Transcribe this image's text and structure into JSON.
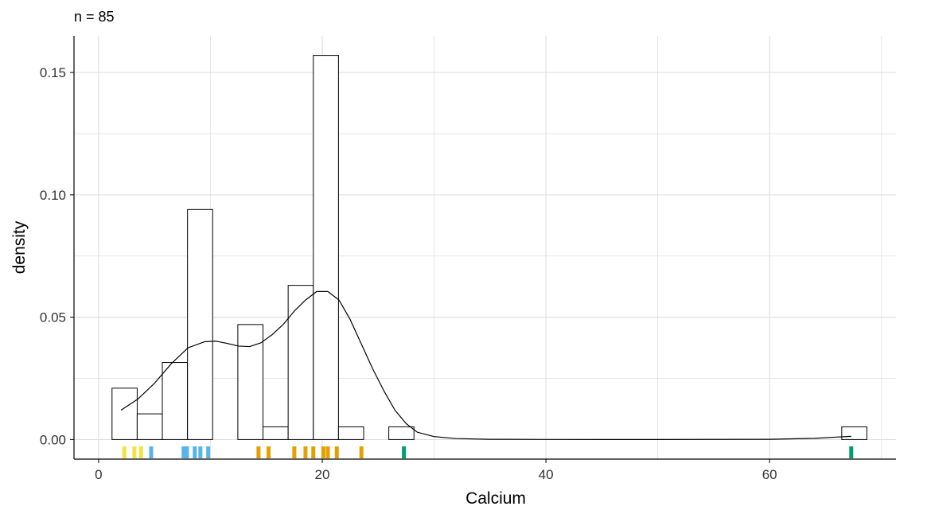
{
  "chart_data": {
    "type": "histogram",
    "subtitle": "n = 85",
    "xlabel": "Calcium",
    "ylabel": "density",
    "xlim": [
      -2.2,
      71.3
    ],
    "ylim": [
      -0.008,
      0.165
    ],
    "x_ticks": [
      0,
      20,
      40,
      60
    ],
    "y_ticks": [
      0.0,
      0.05,
      0.1,
      0.15
    ],
    "x_tick_labels": [
      "0",
      "20",
      "40",
      "60"
    ],
    "y_tick_labels": [
      "0.00",
      "0.05",
      "0.10",
      "0.15"
    ],
    "grid": true,
    "bins": [
      {
        "x0": 1.2,
        "x1": 3.45,
        "density": 0.021
      },
      {
        "x0": 3.45,
        "x1": 5.7,
        "density": 0.0105
      },
      {
        "x0": 5.7,
        "x1": 7.95,
        "density": 0.0315
      },
      {
        "x0": 7.95,
        "x1": 10.2,
        "density": 0.094
      },
      {
        "x0": 10.2,
        "x1": 12.45,
        "density": 0.0
      },
      {
        "x0": 12.45,
        "x1": 14.7,
        "density": 0.047
      },
      {
        "x0": 14.7,
        "x1": 16.95,
        "density": 0.0052
      },
      {
        "x0": 16.95,
        "x1": 19.2,
        "density": 0.063
      },
      {
        "x0": 19.2,
        "x1": 21.45,
        "density": 0.157
      },
      {
        "x0": 21.45,
        "x1": 23.7,
        "density": 0.0052
      },
      {
        "x0": 25.95,
        "x1": 28.2,
        "density": 0.0052
      },
      {
        "x0": 66.45,
        "x1": 68.7,
        "density": 0.0052
      }
    ],
    "density_curve": {
      "x": [
        2.0,
        3.5,
        5.0,
        6.5,
        8.0,
        9.5,
        10.5,
        11.5,
        12.5,
        13.5,
        14.5,
        15.5,
        16.5,
        17.5,
        18.5,
        19.5,
        20.5,
        21.5,
        22.5,
        23.5,
        24.5,
        25.5,
        26.5,
        27.5,
        28.5,
        30.0,
        32.0,
        35.0,
        40.0,
        50.0,
        60.0,
        64.0,
        66.0,
        67.3
      ],
      "y": [
        0.012,
        0.0165,
        0.023,
        0.031,
        0.0375,
        0.04,
        0.0402,
        0.0393,
        0.0382,
        0.038,
        0.0395,
        0.0428,
        0.047,
        0.0525,
        0.057,
        0.0605,
        0.0605,
        0.057,
        0.049,
        0.039,
        0.029,
        0.02,
        0.012,
        0.0065,
        0.003,
        0.0012,
        0.0004,
        0.0001,
        3e-05,
        1e-05,
        0.0001,
        0.0005,
        0.001,
        0.0013
      ]
    },
    "rug": [
      {
        "x": 2.3,
        "color": "#F0E442"
      },
      {
        "x": 3.2,
        "color": "#F0E442"
      },
      {
        "x": 3.8,
        "color": "#F0E442"
      },
      {
        "x": 4.7,
        "color": "#56B4E9"
      },
      {
        "x": 7.6,
        "color": "#56B4E9"
      },
      {
        "x": 7.9,
        "color": "#56B4E9"
      },
      {
        "x": 8.6,
        "color": "#56B4E9"
      },
      {
        "x": 9.1,
        "color": "#56B4E9"
      },
      {
        "x": 9.8,
        "color": "#56B4E9"
      },
      {
        "x": 14.3,
        "color": "#E69F00"
      },
      {
        "x": 15.2,
        "color": "#E69F00"
      },
      {
        "x": 17.5,
        "color": "#E69F00"
      },
      {
        "x": 18.5,
        "color": "#E69F00"
      },
      {
        "x": 19.2,
        "color": "#E69F00"
      },
      {
        "x": 20.1,
        "color": "#E69F00"
      },
      {
        "x": 20.5,
        "color": "#E69F00"
      },
      {
        "x": 21.3,
        "color": "#E69F00"
      },
      {
        "x": 23.5,
        "color": "#E69F00"
      },
      {
        "x": 27.3,
        "color": "#009E73"
      },
      {
        "x": 67.3,
        "color": "#009E73"
      }
    ],
    "colors": {
      "bar_fill": "#ffffff",
      "bar_stroke": "#000000",
      "curve": "#000000",
      "grid": "#dddddd",
      "axis": "#000000"
    }
  }
}
